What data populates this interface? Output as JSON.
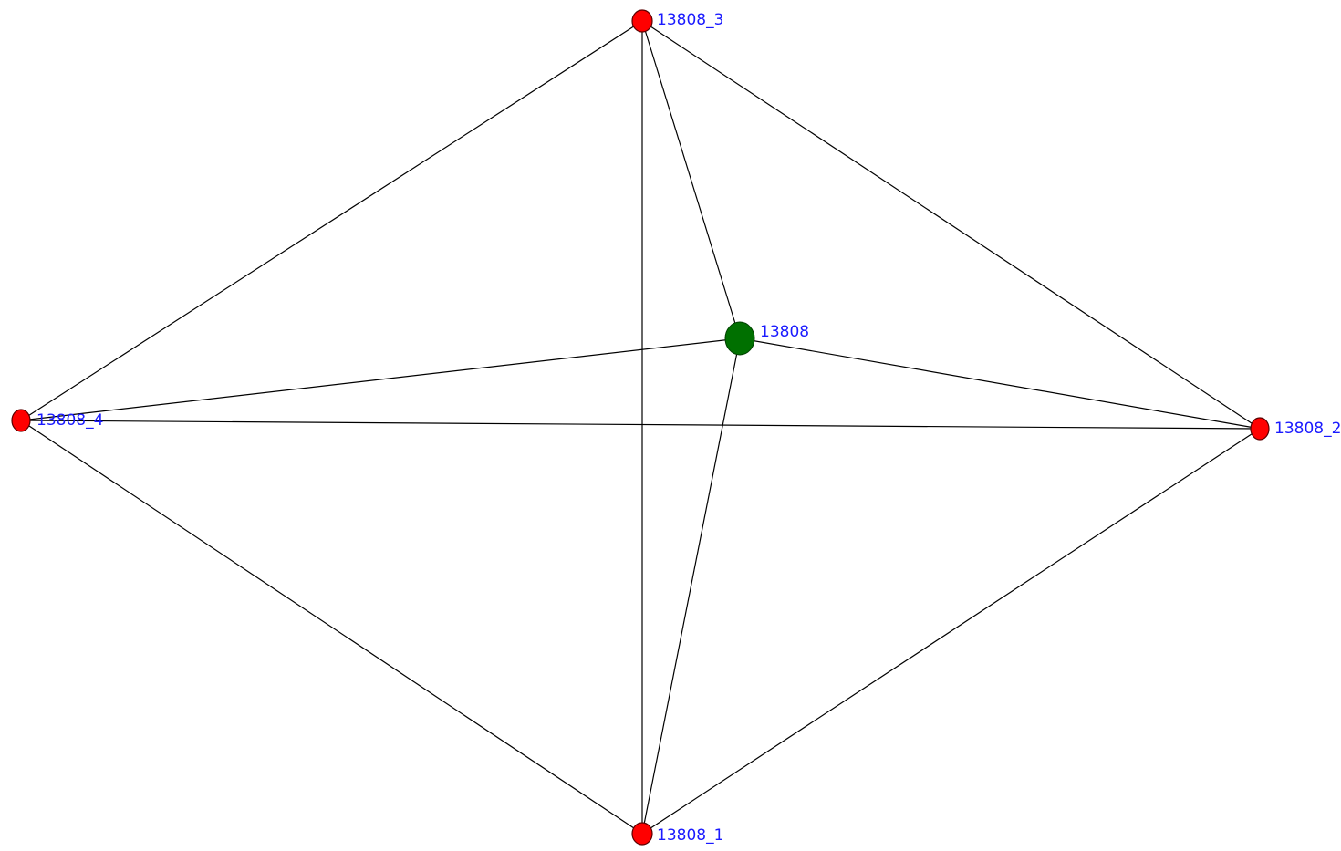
{
  "graph": {
    "nodes": [
      {
        "id": "13808",
        "label": "13808",
        "role": "center",
        "color": "#007000"
      },
      {
        "id": "13808_1",
        "label": "13808_1",
        "role": "peripheral",
        "color": "#ff0000"
      },
      {
        "id": "13808_2",
        "label": "13808_2",
        "role": "peripheral",
        "color": "#ff0000"
      },
      {
        "id": "13808_3",
        "label": "13808_3",
        "role": "peripheral",
        "color": "#ff0000"
      },
      {
        "id": "13808_4",
        "label": "13808_4",
        "role": "peripheral",
        "color": "#ff0000"
      }
    ],
    "edges": [
      [
        "13808_3",
        "13808_4"
      ],
      [
        "13808_3",
        "13808_2"
      ],
      [
        "13808_3",
        "13808_1"
      ],
      [
        "13808_3",
        "13808"
      ],
      [
        "13808_4",
        "13808"
      ],
      [
        "13808_4",
        "13808_2"
      ],
      [
        "13808_4",
        "13808_1"
      ],
      [
        "13808",
        "13808_2"
      ],
      [
        "13808",
        "13808_1"
      ],
      [
        "13808_1",
        "13808_2"
      ]
    ],
    "label_color": "#1a1aff",
    "edge_color": "#000000"
  }
}
